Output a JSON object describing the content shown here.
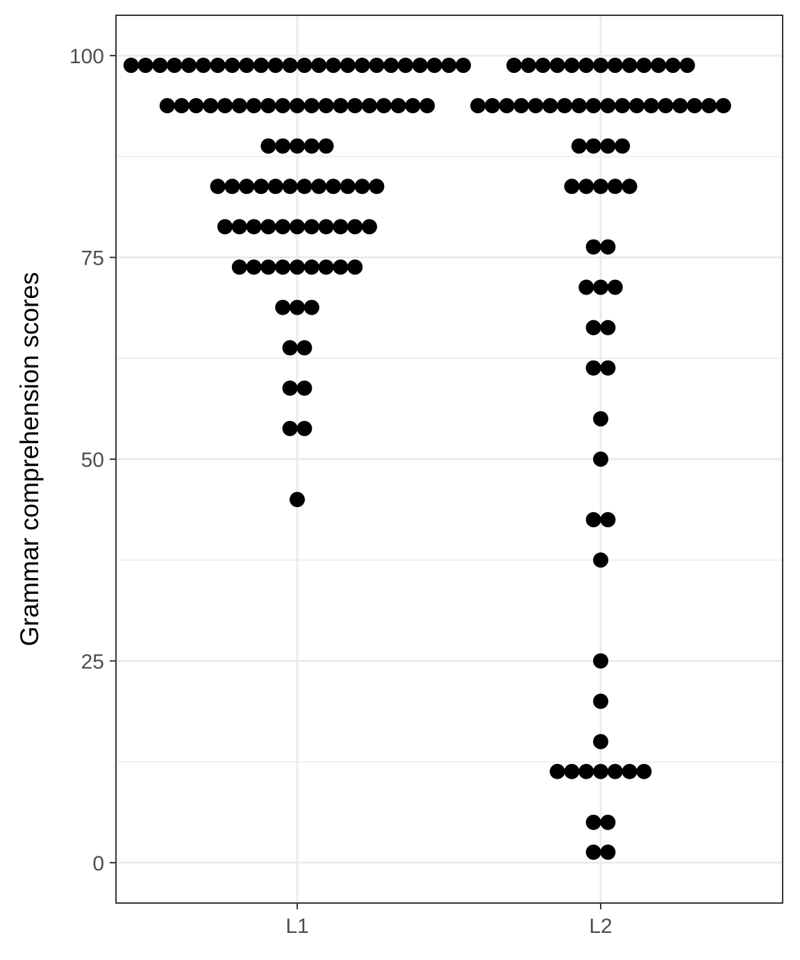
{
  "chart_data": {
    "type": "dotplot",
    "xlabel": "",
    "ylabel": "Grammar comprehension scores",
    "ylim": [
      -5,
      105
    ],
    "y_ticks": [
      0,
      25,
      50,
      75,
      100
    ],
    "y_tick_labels": [
      "0",
      "25",
      "50",
      "75",
      "100"
    ],
    "categories": [
      "L1",
      "L2"
    ],
    "grid": true,
    "theme": "bw",
    "dot_color": "#000000",
    "series": [
      {
        "category": "L1",
        "bins": [
          {
            "y": 98.8,
            "count": 24
          },
          {
            "y": 93.8,
            "count": 19
          },
          {
            "y": 88.8,
            "count": 5
          },
          {
            "y": 83.8,
            "count": 12
          },
          {
            "y": 78.8,
            "count": 11
          },
          {
            "y": 73.8,
            "count": 9
          },
          {
            "y": 68.8,
            "count": 3
          },
          {
            "y": 63.8,
            "count": 2
          },
          {
            "y": 58.8,
            "count": 2
          },
          {
            "y": 53.8,
            "count": 2
          },
          {
            "y": 45.0,
            "count": 1
          }
        ]
      },
      {
        "category": "L2",
        "bins": [
          {
            "y": 98.8,
            "count": 13
          },
          {
            "y": 93.8,
            "count": 18
          },
          {
            "y": 88.8,
            "count": 4
          },
          {
            "y": 83.8,
            "count": 5
          },
          {
            "y": 76.3,
            "count": 2
          },
          {
            "y": 71.3,
            "count": 3
          },
          {
            "y": 66.3,
            "count": 2
          },
          {
            "y": 61.3,
            "count": 2
          },
          {
            "y": 55.0,
            "count": 1
          },
          {
            "y": 50.0,
            "count": 1
          },
          {
            "y": 42.5,
            "count": 2
          },
          {
            "y": 37.5,
            "count": 1
          },
          {
            "y": 25.0,
            "count": 1
          },
          {
            "y": 20.0,
            "count": 1
          },
          {
            "y": 15.0,
            "count": 1
          },
          {
            "y": 11.3,
            "count": 7
          },
          {
            "y": 5.0,
            "count": 2
          },
          {
            "y": 1.3,
            "count": 2
          }
        ]
      }
    ]
  }
}
